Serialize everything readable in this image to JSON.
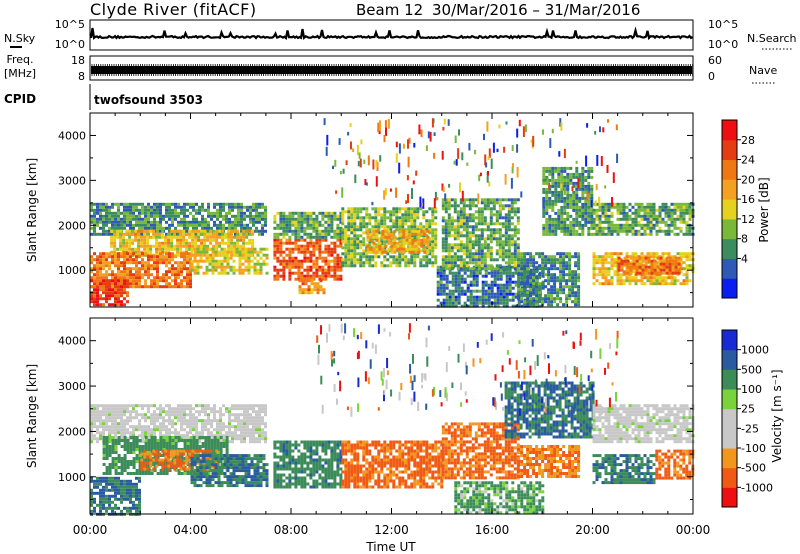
{
  "header": {
    "station": "Clyde River (fitACF)",
    "beam": "Beam 12",
    "date_range": "30/Mar/2016 – 31/Mar/2016"
  },
  "summary_panels": {
    "nsky": {
      "label": "N.Sky",
      "left_ticks": [
        "10^5",
        "10^0"
      ]
    },
    "nsearch": {
      "label": "N.Search",
      "right_ticks": [
        "10^5",
        "10^0"
      ]
    },
    "freq": {
      "label_line1": "Freq.",
      "label_line2": "[MHz]",
      "left_ticks": [
        "18",
        "8"
      ]
    },
    "nave": {
      "label": "Nave",
      "right_ticks": [
        "60",
        "0"
      ]
    },
    "cpid": {
      "label": "CPID",
      "value": "twofsound 3503"
    }
  },
  "colors": {
    "power": [
      "#0a1ef0",
      "#2d5ab4",
      "#3d8c5e",
      "#7ab83a",
      "#e6d21e",
      "#f4a020",
      "#f07814",
      "#e63c14",
      "#ee1010"
    ],
    "velocity": [
      "#ee1010",
      "#f05a14",
      "#f2961e",
      "#c8c8c8",
      "#c8c8c8",
      "#7ad23c",
      "#3c8c5a",
      "#2a5aa0",
      "#1a2ad2"
    ]
  },
  "chart_data": [
    {
      "type": "heatmap",
      "name": "Power",
      "ylabel": "Slant Range [km]",
      "colorbar_label": "Power [dB]",
      "colorbar_ticks": [
        "28",
        "24",
        "20",
        "16",
        "12",
        "8",
        "4"
      ],
      "yticks": [
        "4000",
        "3000",
        "2000",
        "1000"
      ],
      "xlim": [
        0,
        24
      ],
      "ylim": [
        180,
        4500
      ],
      "colorbar_range": [
        0,
        32
      ],
      "bands": [
        {
          "t0": 0.0,
          "t1": 7.0,
          "r0": 1800,
          "r1": 2500,
          "v": 8
        },
        {
          "t0": 0.8,
          "t1": 6.5,
          "r0": 1300,
          "r1": 1900,
          "v": 18
        },
        {
          "t0": 0.0,
          "t1": 4.0,
          "r0": 600,
          "r1": 1400,
          "v": 24
        },
        {
          "t0": 0.0,
          "t1": 1.5,
          "r0": 200,
          "r1": 800,
          "v": 28
        },
        {
          "t0": 4.0,
          "t1": 7.0,
          "r0": 900,
          "r1": 1500,
          "v": 16
        },
        {
          "t0": 7.3,
          "t1": 10.0,
          "r0": 800,
          "r1": 1700,
          "v": 26
        },
        {
          "t0": 7.3,
          "t1": 10.0,
          "r0": 1700,
          "r1": 2300,
          "v": 10
        },
        {
          "t0": 8.3,
          "t1": 9.3,
          "r0": 500,
          "r1": 800,
          "v": 22
        },
        {
          "t0": 10.0,
          "t1": 13.8,
          "r0": 1100,
          "r1": 2400,
          "v": 12
        },
        {
          "t0": 11.0,
          "t1": 13.5,
          "r0": 1400,
          "r1": 1900,
          "v": 20
        },
        {
          "t0": 13.8,
          "t1": 18.0,
          "r0": 200,
          "r1": 1100,
          "v": 6
        },
        {
          "t0": 14.0,
          "t1": 17.0,
          "r0": 1000,
          "r1": 2600,
          "v": 10
        },
        {
          "t0": 17.0,
          "t1": 19.5,
          "r0": 200,
          "r1": 1400,
          "v": 7
        },
        {
          "t0": 18.0,
          "t1": 20.0,
          "r0": 1800,
          "r1": 3300,
          "v": 9
        },
        {
          "t0": 20.0,
          "t1": 24.0,
          "r0": 1800,
          "r1": 2500,
          "v": 10
        },
        {
          "t0": 20.0,
          "t1": 24.0,
          "r0": 700,
          "r1": 1400,
          "v": 18
        },
        {
          "t0": 21.0,
          "t1": 23.5,
          "r0": 900,
          "r1": 1300,
          "v": 24
        }
      ]
    },
    {
      "type": "heatmap",
      "name": "Velocity",
      "ylabel": "Slant Range [km]",
      "colorbar_label": "Velocity [m s⁻¹]",
      "colorbar_ticks": [
        "1000",
        "500",
        "100",
        "25",
        "-25",
        "-100",
        "-500",
        "-1000"
      ],
      "yticks": [
        "4000",
        "3000",
        "2000",
        "1000"
      ],
      "xlabel": "Time UT",
      "xticks": [
        "00:00",
        "04:00",
        "08:00",
        "12:00",
        "16:00",
        "20:00",
        "00:00"
      ],
      "xlim": [
        0,
        24
      ],
      "ylim": [
        180,
        4500
      ],
      "bands": [
        {
          "t0": 0.0,
          "t1": 7.0,
          "r0": 1800,
          "r1": 2600,
          "v": 0
        },
        {
          "t0": 0.5,
          "t1": 5.5,
          "r0": 1100,
          "r1": 1900,
          "v": 150
        },
        {
          "t0": 2.0,
          "t1": 5.0,
          "r0": 1200,
          "r1": 1600,
          "v": -300
        },
        {
          "t0": 0.0,
          "t1": 2.0,
          "r0": 200,
          "r1": 1000,
          "v": 300
        },
        {
          "t0": 4.0,
          "t1": 7.0,
          "r0": 800,
          "r1": 1500,
          "v": 300
        },
        {
          "t0": 7.3,
          "t1": 10.0,
          "r0": 800,
          "r1": 1800,
          "v": 200
        },
        {
          "t0": 10.0,
          "t1": 14.0,
          "r0": 800,
          "r1": 1800,
          "v": -400
        },
        {
          "t0": 14.0,
          "t1": 17.0,
          "r0": 1000,
          "r1": 2200,
          "v": -400
        },
        {
          "t0": 14.5,
          "t1": 18.0,
          "r0": 200,
          "r1": 900,
          "v": 80
        },
        {
          "t0": 16.5,
          "t1": 20.0,
          "r0": 1900,
          "r1": 3100,
          "v": 300
        },
        {
          "t0": 17.0,
          "t1": 19.5,
          "r0": 1000,
          "r1": 1700,
          "v": -300
        },
        {
          "t0": 20.0,
          "t1": 24.0,
          "r0": 1800,
          "r1": 2600,
          "v": 0
        },
        {
          "t0": 20.0,
          "t1": 22.5,
          "r0": 900,
          "r1": 1500,
          "v": 250
        },
        {
          "t0": 22.5,
          "t1": 24.0,
          "r0": 1000,
          "r1": 1600,
          "v": -400
        }
      ]
    }
  ]
}
